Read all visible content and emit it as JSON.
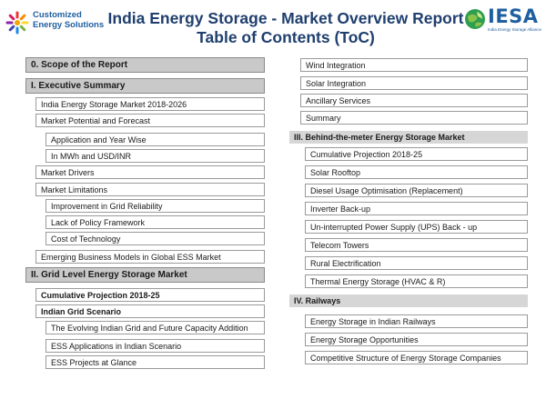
{
  "header": {
    "title_line1": "India Energy Storage - Market Overview Report",
    "title_line2": "Table of Contents (ToC)",
    "logo_left_line1": "Customized",
    "logo_left_line2": "Energy Solutions",
    "logo_right_name": "IESA",
    "logo_right_tagline": "India Energy Storage Alliance"
  },
  "left": {
    "s0": "0. Scope of the Report",
    "s1": "I. Executive Summary",
    "s1_items": [
      "India Energy Storage Market 2018-2026",
      "Market Potential and Forecast",
      "Application and Year Wise",
      "In MWh and USD/INR",
      "Market Drivers",
      "Market Limitations",
      "Improvement in Grid Reliability",
      "Lack of Policy Framework",
      "Cost of Technology",
      "Emerging Business Models in Global ESS Market"
    ],
    "s2": "II. Grid Level Energy Storage Market",
    "s2_items": [
      "Cumulative Projection 2018-25",
      "Indian Grid Scenario",
      "The Evolving Indian Grid and Future Capacity Addition",
      "ESS Applications in Indian Scenario",
      "ESS Projects at Glance"
    ]
  },
  "right": {
    "top_items": [
      "Wind Integration",
      "Solar Integration",
      "Ancillary Services",
      "Summary"
    ],
    "s3": "III. Behind-the-meter Energy Storage Market",
    "s3_items": [
      "Cumulative Projection 2018-25",
      "Solar Rooftop",
      "Diesel Usage Optimisation (Replacement)",
      "Inverter Back-up",
      "Un-interrupted Power Supply (UPS) Back - up",
      "Telecom Towers",
      "Rural Electrification",
      "Thermal Energy Storage (HVAC & R)"
    ],
    "s4": "IV. Railways",
    "s4_items": [
      "Energy Storage in Indian Railways",
      "Energy Storage Opportunities",
      "Competitive Structure of Energy Storage Companies"
    ]
  }
}
